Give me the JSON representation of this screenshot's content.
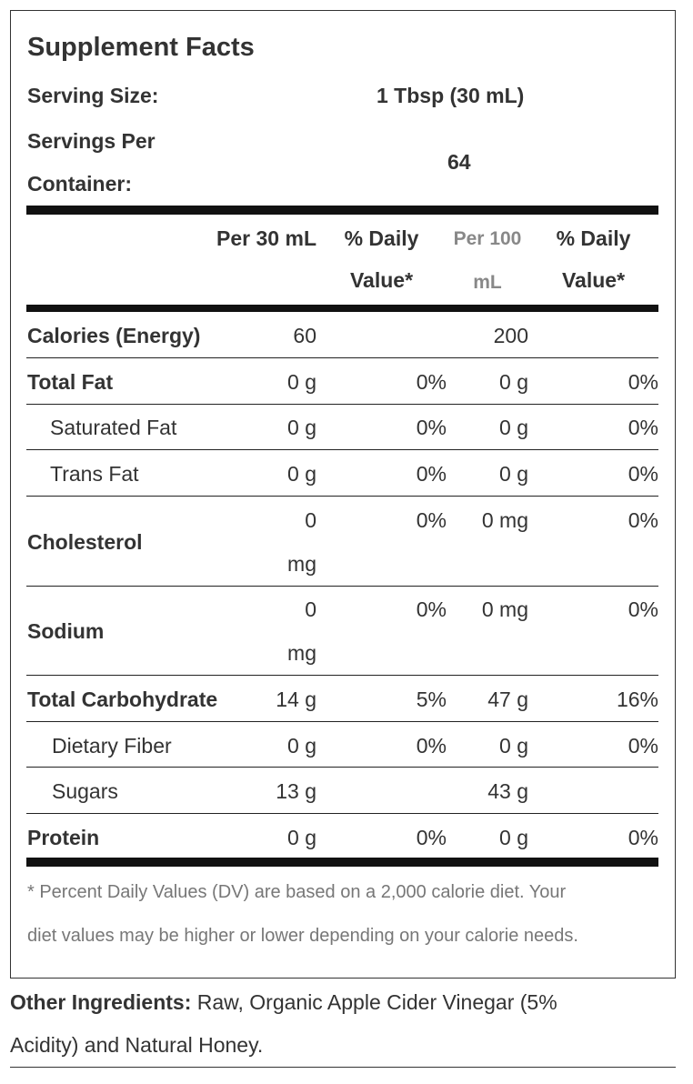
{
  "facts": {
    "title": "Supplement Facts",
    "serving_size_label": "Serving Size:",
    "serving_size_value": "1 Tbsp (30 mL)",
    "servings_per_label_1": "Servings Per",
    "servings_per_label_2": "Container:",
    "servings_per_value": "64"
  },
  "table_header": {
    "per30": "Per 30 mL",
    "dv1_line1": "% Daily",
    "dv1_line2": "Value*",
    "per100_line1": "Per 100",
    "per100_line2": "mL",
    "dv2_line1": "% Daily",
    "dv2_line2": "Value*"
  },
  "rows": {
    "calories": {
      "label": "Calories (Energy)",
      "per30": "60",
      "dv1": "",
      "per100": "200",
      "dv2": ""
    },
    "total_fat": {
      "label": "Total Fat",
      "per30": "0 g",
      "dv1": "0%",
      "per100": "0 g",
      "dv2": "0%"
    },
    "sat_fat": {
      "label": "Saturated Fat",
      "per30": "0 g",
      "dv1": "0%",
      "per100": "0 g",
      "dv2": "0%"
    },
    "trans_fat": {
      "label": "Trans Fat",
      "per30": "0 g",
      "dv1": "0%",
      "per100": "0 g",
      "dv2": "0%"
    },
    "cholesterol": {
      "label": "Cholesterol",
      "per30_a": "0",
      "per30_b": "mg",
      "dv1": "0%",
      "per100": "0 mg",
      "dv2": "0%"
    },
    "sodium": {
      "label": "Sodium",
      "per30_a": "0",
      "per30_b": "mg",
      "dv1": "0%",
      "per100": "0 mg",
      "dv2": "0%"
    },
    "total_carb": {
      "label": "Total Carbohydrate",
      "per30": "14 g",
      "dv1": "5%",
      "per100": "47 g",
      "dv2": "16%"
    },
    "fiber": {
      "label": "Dietary Fiber",
      "per30": "0 g",
      "dv1": "0%",
      "per100": "0 g",
      "dv2": "0%"
    },
    "sugars": {
      "label": "Sugars",
      "per30": "13 g",
      "dv1": "",
      "per100": "43 g",
      "dv2": ""
    },
    "protein": {
      "label": "Protein",
      "per30": "0 g",
      "dv1": "0%",
      "per100": "0 g",
      "dv2": "0%"
    }
  },
  "footnote": {
    "line1": "* Percent Daily Values (DV) are based on a 2,000 calorie diet. Your",
    "line2": "diet values may be higher or lower depending on your calorie needs."
  },
  "ingredients": {
    "label": "Other Ingredients:",
    "text_line1": " Raw, Organic Apple Cider Vinegar (5%",
    "text_line2": "Acidity) and Natural Honey."
  }
}
